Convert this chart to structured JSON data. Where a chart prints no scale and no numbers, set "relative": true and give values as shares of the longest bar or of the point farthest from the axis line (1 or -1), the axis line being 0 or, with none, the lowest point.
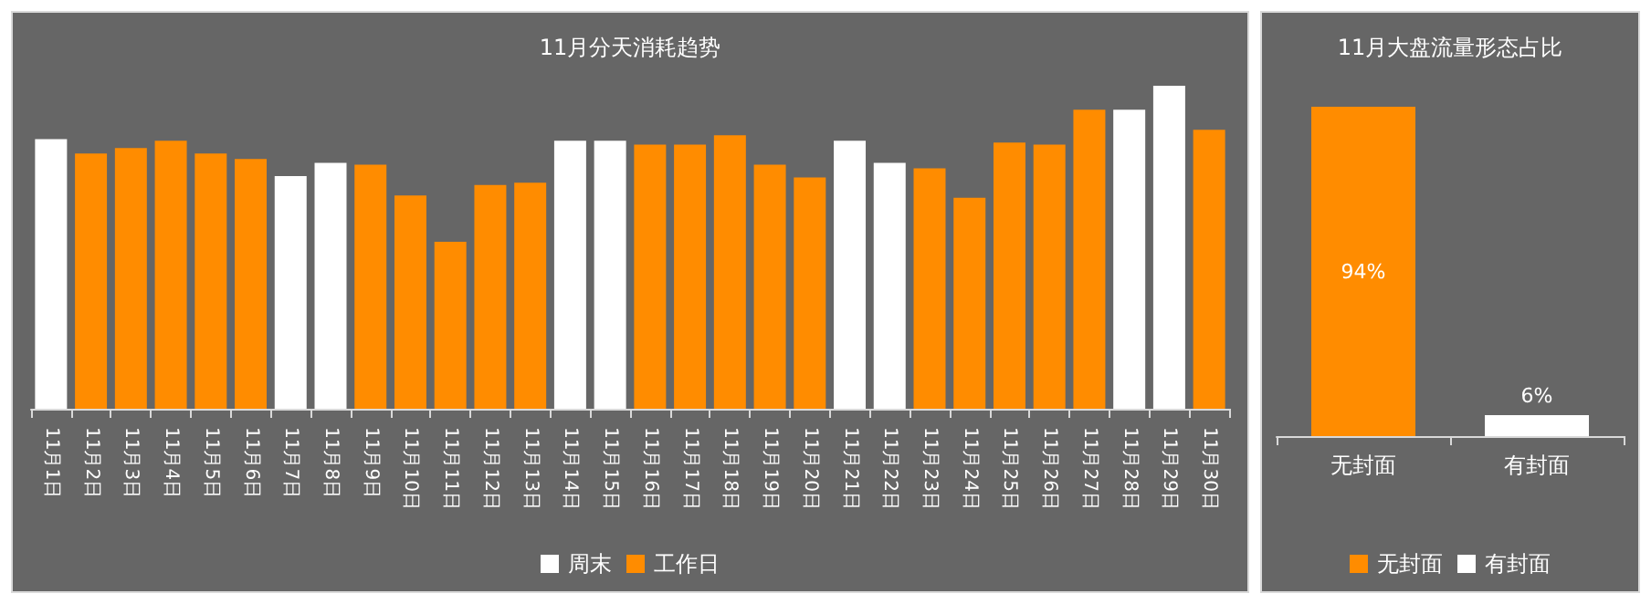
{
  "chart_data": [
    {
      "type": "bar",
      "title": "11月分天消耗趋势",
      "categories": [
        "11月1日",
        "11月2日",
        "11月3日",
        "11月4日",
        "11月5日",
        "11月6日",
        "11月7日",
        "11月8日",
        "11月9日",
        "11月10日",
        "11月11日",
        "11月12日",
        "11月13日",
        "11月14日",
        "11月15日",
        "11月16日",
        "11月17日",
        "11月18日",
        "11月19日",
        "11月20日",
        "11月21日",
        "11月22日",
        "11月23日",
        "11月24日",
        "11月25日",
        "11月26日",
        "11月27日",
        "11月28日",
        "11月29日",
        "11月30日"
      ],
      "relative": true,
      "legend": "bottom",
      "series": [
        {
          "name": "周末",
          "color": "#ffffff",
          "values": [
            0.835,
            null,
            null,
            null,
            null,
            null,
            0.72,
            0.761,
            null,
            null,
            null,
            null,
            null,
            0.83,
            0.83,
            null,
            null,
            null,
            null,
            null,
            0.83,
            0.761,
            null,
            null,
            null,
            null,
            null,
            0.926,
            1,
            null
          ]
        },
        {
          "name": "工作日",
          "color": "#ff8c00",
          "values": [
            null,
            0.79,
            0.807,
            0.83,
            0.79,
            0.773,
            null,
            null,
            0.756,
            0.66,
            0.517,
            0.693,
            0.7,
            null,
            null,
            0.818,
            0.818,
            0.847,
            0.756,
            0.716,
            null,
            null,
            0.744,
            0.653,
            0.824,
            0.818,
            0.926,
            null,
            null,
            0.864
          ]
        }
      ]
    },
    {
      "type": "bar",
      "title": "11月大盘流量形态占比",
      "categories": [
        "无封面",
        "有封面"
      ],
      "legend": "bottom",
      "series": [
        {
          "name": "无封面",
          "color": "#ff8c00",
          "values": [
            94,
            null
          ],
          "value_labels": [
            "94%",
            null
          ]
        },
        {
          "name": "有封面",
          "color": "#ffffff",
          "values": [
            null,
            6
          ],
          "value_labels": [
            null,
            "6%"
          ]
        }
      ]
    }
  ]
}
